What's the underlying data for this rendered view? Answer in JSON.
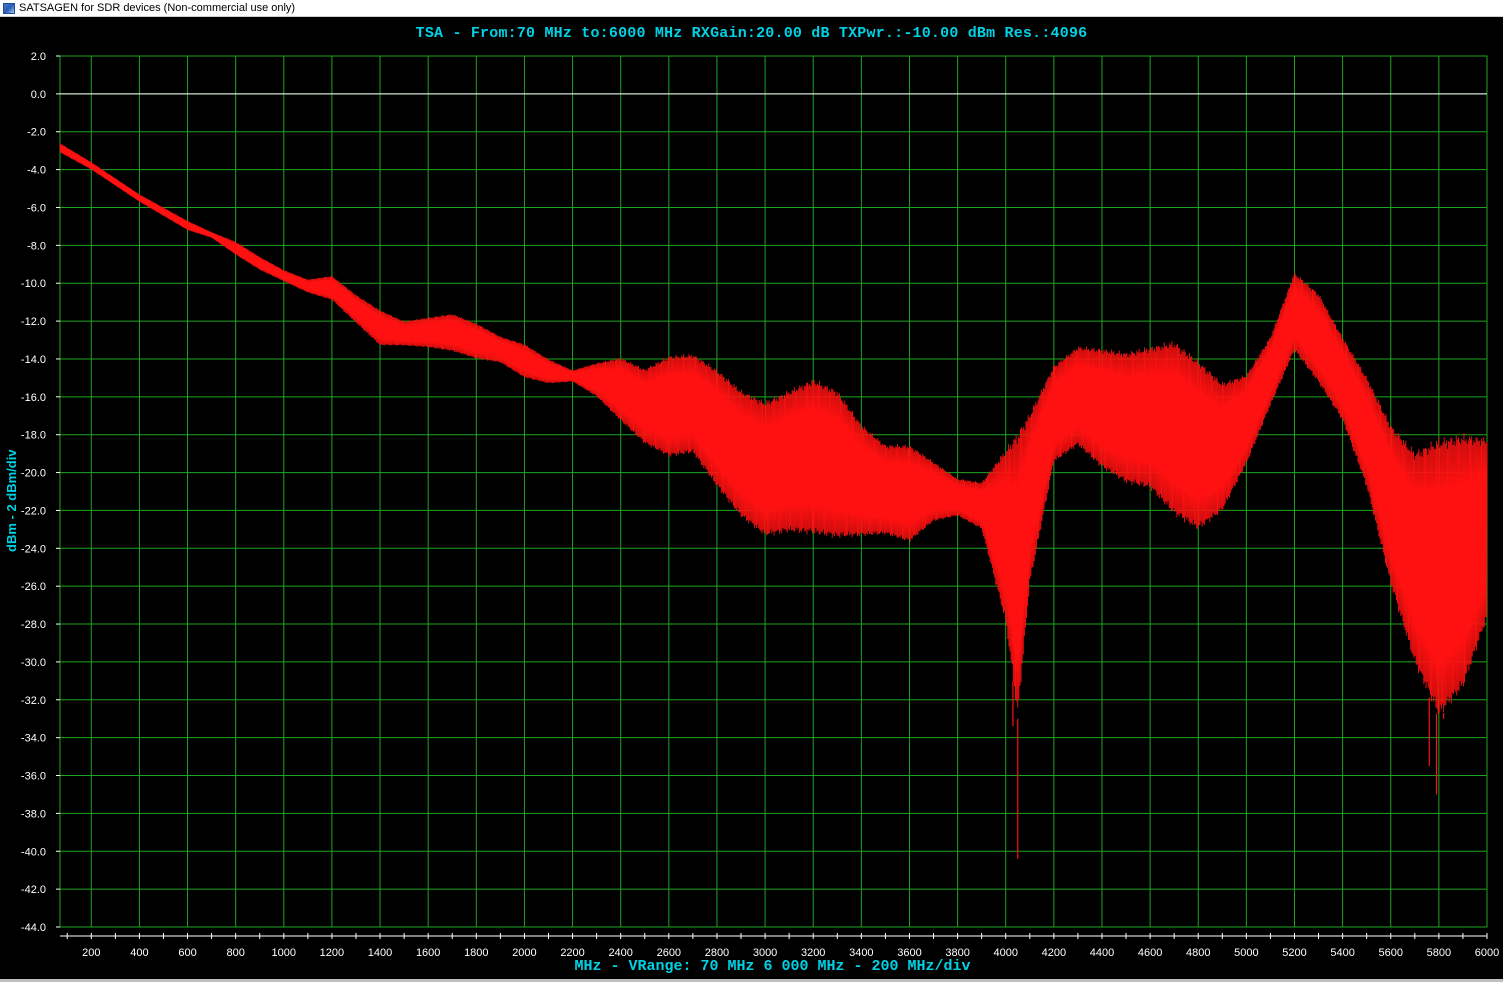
{
  "window": {
    "title": "SATSAGEN for SDR devices (Non-commercial use only)"
  },
  "colors": {
    "background": "#000000",
    "grid": "#1fa51f",
    "trace": "#ff1111",
    "label": "#00d2e6",
    "ref_line": "#ffffff"
  },
  "chart_data": {
    "type": "line",
    "title": "TSA - From:70 MHz to:6000 MHz RXGain:20.00 dB TXPwr.:-10.00 dBm Res.:4096",
    "xlabel": "MHz - VRange: 70 MHz 6 000 MHz - 200 MHz/div",
    "ylabel": "dBm - 2 dBm/div",
    "xlim": [
      70,
      6000
    ],
    "ylim": [
      -44,
      2
    ],
    "x_ticks": [
      200,
      400,
      600,
      800,
      1000,
      1200,
      1400,
      1600,
      1800,
      2000,
      2200,
      2400,
      2600,
      2800,
      3000,
      3200,
      3400,
      3600,
      3800,
      4000,
      4200,
      4400,
      4600,
      4800,
      5000,
      5200,
      5400,
      5600,
      5800,
      6000
    ],
    "y_ticks": [
      "2.0",
      "0.0",
      "-2.0",
      "-4.0",
      "-6.0",
      "-8.0",
      "-10.0",
      "-12.0",
      "-14.0",
      "-16.0",
      "-18.0",
      "-20.0",
      "-22.0",
      "-24.0",
      "-26.0",
      "-28.0",
      "-30.0",
      "-32.0",
      "-34.0",
      "-36.0",
      "-38.0",
      "-40.0",
      "-42.0",
      "-44.0"
    ],
    "grid": true,
    "reference_line": 0,
    "series": [
      {
        "color": "#ff1111",
        "upper": [
          [
            70,
            -2.6
          ],
          [
            200,
            -3.6
          ],
          [
            400,
            -5.3
          ],
          [
            600,
            -6.7
          ],
          [
            700,
            -7.3
          ],
          [
            800,
            -7.8
          ],
          [
            900,
            -8.6
          ],
          [
            1000,
            -9.3
          ],
          [
            1100,
            -9.8
          ],
          [
            1200,
            -9.6
          ],
          [
            1300,
            -10.6
          ],
          [
            1400,
            -11.4
          ],
          [
            1500,
            -12.0
          ],
          [
            1600,
            -11.8
          ],
          [
            1700,
            -11.6
          ],
          [
            1800,
            -12.1
          ],
          [
            1900,
            -12.8
          ],
          [
            2000,
            -13.2
          ],
          [
            2100,
            -14.0
          ],
          [
            2200,
            -14.6
          ],
          [
            2300,
            -14.2
          ],
          [
            2400,
            -13.9
          ],
          [
            2500,
            -14.5
          ],
          [
            2600,
            -13.8
          ],
          [
            2700,
            -13.7
          ],
          [
            2800,
            -14.5
          ],
          [
            2900,
            -15.6
          ],
          [
            3000,
            -16.2
          ],
          [
            3100,
            -15.6
          ],
          [
            3200,
            -15.0
          ],
          [
            3300,
            -15.6
          ],
          [
            3400,
            -17.4
          ],
          [
            3500,
            -18.5
          ],
          [
            3600,
            -18.5
          ],
          [
            3700,
            -19.4
          ],
          [
            3800,
            -20.3
          ],
          [
            3900,
            -20.5
          ],
          [
            4000,
            -18.7
          ],
          [
            4100,
            -16.8
          ],
          [
            4200,
            -14.3
          ],
          [
            4300,
            -13.3
          ],
          [
            4400,
            -13.4
          ],
          [
            4500,
            -13.6
          ],
          [
            4600,
            -13.3
          ],
          [
            4700,
            -13.0
          ],
          [
            4800,
            -14.0
          ],
          [
            4900,
            -15.2
          ],
          [
            5000,
            -14.8
          ],
          [
            5100,
            -12.8
          ],
          [
            5200,
            -9.4
          ],
          [
            5300,
            -10.5
          ],
          [
            5400,
            -12.8
          ],
          [
            5500,
            -14.9
          ],
          [
            5600,
            -17.4
          ],
          [
            5700,
            -18.8
          ],
          [
            5800,
            -18.1
          ],
          [
            5900,
            -17.9
          ],
          [
            6000,
            -18.1
          ]
        ],
        "lower": [
          [
            70,
            -3.1
          ],
          [
            200,
            -4.0
          ],
          [
            400,
            -5.7
          ],
          [
            600,
            -7.2
          ],
          [
            700,
            -7.6
          ],
          [
            800,
            -8.5
          ],
          [
            900,
            -9.3
          ],
          [
            1000,
            -9.9
          ],
          [
            1100,
            -10.5
          ],
          [
            1200,
            -10.9
          ],
          [
            1300,
            -12.1
          ],
          [
            1400,
            -13.3
          ],
          [
            1500,
            -13.3
          ],
          [
            1600,
            -13.4
          ],
          [
            1700,
            -13.6
          ],
          [
            1800,
            -14.0
          ],
          [
            1900,
            -14.2
          ],
          [
            2000,
            -15.0
          ],
          [
            2100,
            -15.3
          ],
          [
            2200,
            -15.2
          ],
          [
            2300,
            -16.0
          ],
          [
            2400,
            -17.3
          ],
          [
            2500,
            -18.5
          ],
          [
            2600,
            -19.2
          ],
          [
            2700,
            -19.0
          ],
          [
            2800,
            -20.8
          ],
          [
            2900,
            -22.4
          ],
          [
            3000,
            -23.4
          ],
          [
            3100,
            -23.2
          ],
          [
            3200,
            -23.3
          ],
          [
            3300,
            -23.5
          ],
          [
            3400,
            -23.4
          ],
          [
            3500,
            -23.3
          ],
          [
            3600,
            -23.7
          ],
          [
            3700,
            -22.6
          ],
          [
            3800,
            -22.3
          ],
          [
            3900,
            -23.0
          ],
          [
            4000,
            -28.0
          ],
          [
            4050,
            -33.0
          ],
          [
            4100,
            -26.0
          ],
          [
            4200,
            -19.5
          ],
          [
            4300,
            -18.6
          ],
          [
            4400,
            -19.8
          ],
          [
            4500,
            -20.6
          ],
          [
            4600,
            -20.9
          ],
          [
            4700,
            -22.3
          ],
          [
            4800,
            -23.1
          ],
          [
            4900,
            -22.1
          ],
          [
            5000,
            -19.6
          ],
          [
            5100,
            -16.5
          ],
          [
            5200,
            -13.6
          ],
          [
            5300,
            -15.3
          ],
          [
            5400,
            -17.3
          ],
          [
            5500,
            -20.8
          ],
          [
            5600,
            -26.0
          ],
          [
            5700,
            -30.2
          ],
          [
            5800,
            -33.0
          ],
          [
            5900,
            -31.5
          ],
          [
            6000,
            -27.8
          ]
        ],
        "spikes": [
          [
            4050,
            -40.4
          ],
          [
            5790,
            -37.0
          ],
          [
            5760,
            -35.5
          ],
          [
            4030,
            -33.4
          ],
          [
            5820,
            -33.0
          ]
        ]
      }
    ]
  }
}
